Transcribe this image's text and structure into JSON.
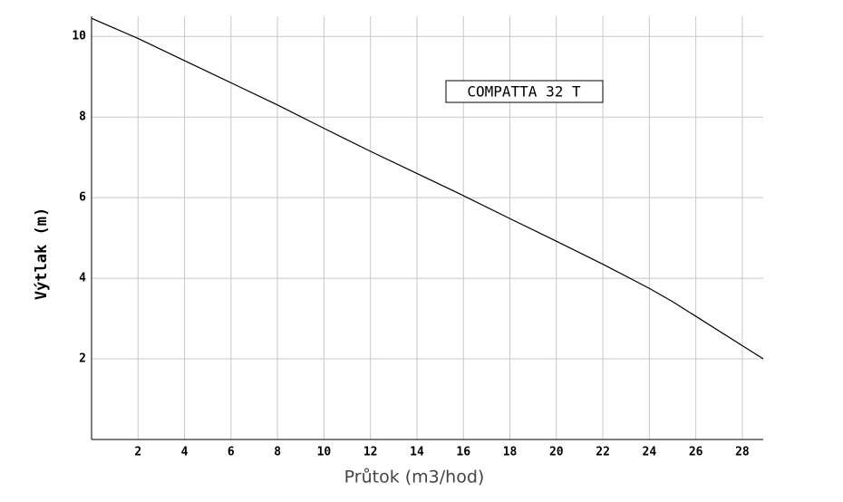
{
  "chart_data": {
    "type": "line",
    "x_label": "Průtok (m3/hod)",
    "y_label": "Výtlak (m)",
    "annotation": "COMPATTA 32 T",
    "x": [
      0,
      2,
      4,
      6,
      8,
      10,
      12,
      14,
      16,
      18,
      20,
      22,
      24,
      25,
      28.9
    ],
    "series": [
      {
        "color": "#000000",
        "values": [
          10.45,
          9.95,
          9.4,
          8.85,
          8.3,
          7.72,
          7.15,
          6.6,
          6.05,
          5.48,
          4.92,
          4.35,
          3.75,
          3.42,
          2.0
        ]
      }
    ],
    "xlim": [
      0,
      28.9
    ],
    "ylim": [
      0,
      10.5
    ],
    "xticks": [
      2,
      4,
      6,
      8,
      10,
      12,
      14,
      16,
      18,
      20,
      22,
      24,
      26,
      28
    ],
    "yticks": [
      2,
      4,
      6,
      8,
      10
    ],
    "grid": true
  }
}
